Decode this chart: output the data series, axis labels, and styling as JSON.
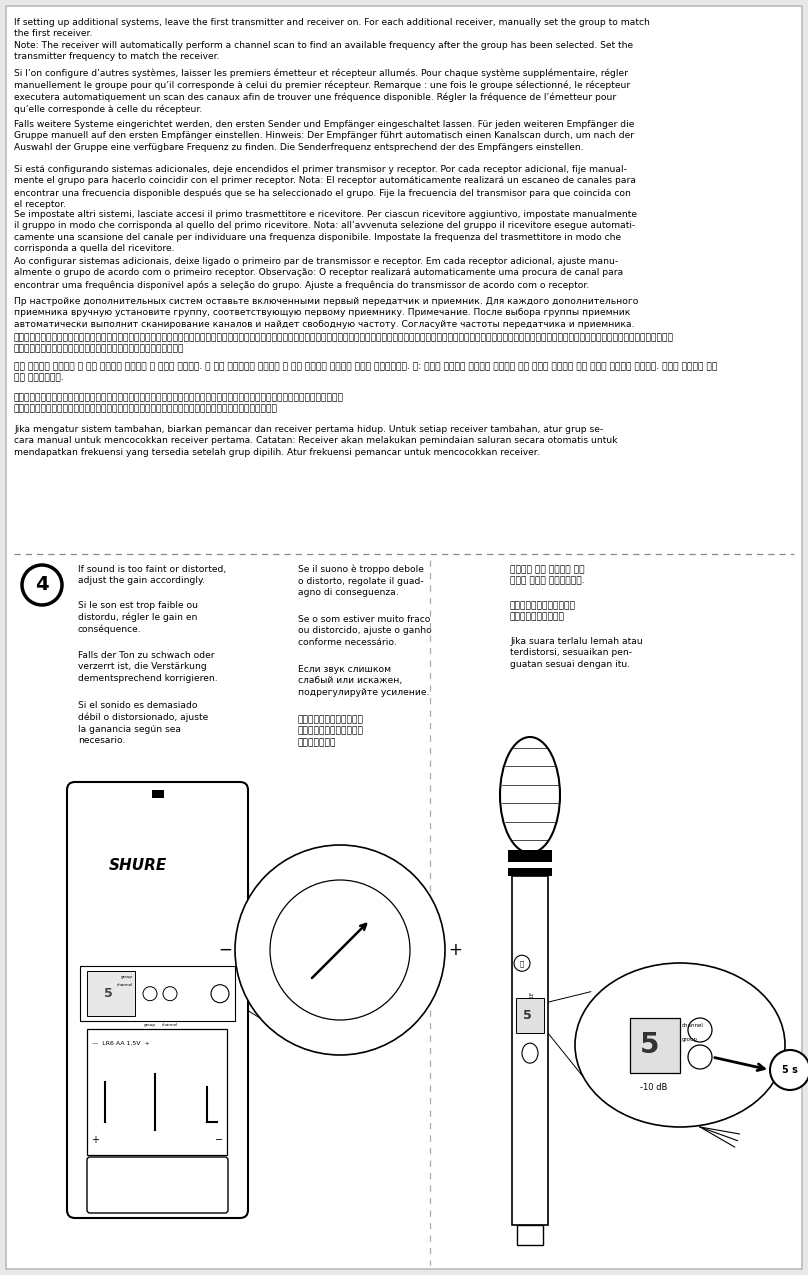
{
  "paragraphs": [
    "If setting up additional systems, leave the first transmitter and receiver on. For each additional receiver, manually set the group to match\nthe first receiver.\nNote: The receiver will automatically perform a channel scan to find an available frequency after the group has been selected. Set the\ntransmitter frequency to match the receiver.",
    "Si l’on configure d’autres systèmes, laisser les premiers émetteur et récepteur allumés. Pour chaque système supplémentaire, régler\nmanuellement le groupe pour qu’il corresponde à celui du premier récepteur. Remarque : une fois le groupe sélectionné, le récepteur\nexecutera automatiquement un scan des canaux afin de trouver une fréquence disponible. Régler la fréquence de l’émetteur pour\nqu’elle corresponde à celle du récepteur.",
    "Falls weitere Systeme eingerichtet werden, den ersten Sender und Empfänger eingeschaltet lassen. Für jeden weiteren Empfänger die\nGruppe manuell auf den ersten Empfänger einstellen. Hinweis: Der Empfänger führt automatisch einen Kanalscan durch, um nach der\nAuswahl der Gruppe eine verfügbare Frequenz zu finden. Die Senderfrequenz entsprechend der des Empfängers einstellen.",
    "Si está configurando sistemas adicionales, deje encendidos el primer transmisor y receptor. Por cada receptor adicional, fije manual-\nmente el grupo para hacerlo coincidir con el primer receptor. Nota: El receptor automáticamente realizará un escaneo de canales para\nencontrar una frecuencia disponible después que se ha seleccionado el grupo. Fije la frecuencia del transmisor para que coincida con\nel receptor.",
    "Se impostate altri sistemi, lasciate accesi il primo trasmettitore e ricevitore. Per ciascun ricevitore aggiuntivo, impostate manualmente\nil gruppo in modo che corrisponda al quello del primo ricevitore. Nota: all’avvenuta selezione del gruppo il ricevitore esegue automati-\ncamente una scansione del canale per individuare una frequenza disponibile. Impostate la frequenza del trasmettitore in modo che\ncorrisponda a quella del ricevitore.",
    "Ao configurar sistemas adicionais, deixe ligado o primeiro par de transmissor e receptor. Em cada receptor adicional, ajuste manu-\nalmente o grupo de acordo com o primeiro receptor. Observação: O receptor realizará automaticamente uma procura de canal para\nencontrar uma frequência disponivel após a seleção do grupo. Ajuste a frequência do transmissor de acordo com o receptor.",
    "Пр настройке дополнительных систем оставьте включенными первый передатчик и приемник. Для каждого дополнительного\nприемника вручную установите группу, соответствующую первому приемнику. Примечание. После выбора группы приемник\nавтоматически выполнит сканирование каналов и найдет свободную частоту. Согласуйте частоты передатчика и приемника.",
    "追加システムを設定する場合は、最初の送信機と受信機をオンにした状態にしてください。各追加受信機ごとに、グループを手動で設定して最初の受信機に合わせてください。注記：受信機は自動的にチャンネルスキャンを実行し、グループを選択したら利用可能な周\n波数を検出します。送信機周波数を設定して受信機に一致させます。",
    "추가 시스템을 설정하면 첫 번째 송신기와 수신기를 켤 상태로 두십시오. 각 추가 수신기마다 수동으로 첫 번째 송신기와 일치하는 그룹을 설정하십시오. 주: 그룹이 선택되면 수신기가 자동으로 채널 스캔을 수행하여 사용 가능한 주파수를 찾습니다. 송신기 주파수를 수신\n기에 일치시킵니다.",
    "如果要设置更多的系统，应让第一台发射机和接收机保持在打开状态。对于每个增加的接收机，因将组手动设置为与第一台接收机匹配。\n注意：接收机可自动纸筱厂频道扫描，在选取组之后找到可用的频率。将发射机的频率设置为与接收机匹配。",
    "Jika mengatur sistem tambahan, biarkan pemancar dan receiver pertama hidup. Untuk setiap receiver tambahan, atur grup se-\ncara manual untuk mencocokkan receiver pertama. Catatan: Receiver akan melakukan pemindaian saluran secara otomatis untuk\nmendapatkan frekuensi yang tersedia setelah grup dipilih. Atur frekuensi pemancar untuk mencocokkan receiver."
  ],
  "step4_col1": [
    "If sound is too faint or distorted,\nadjust the gain accordingly.",
    "Si le son est trop faible ou\ndistordu, régler le gain en\nconséquence.",
    "Falls der Ton zu schwach oder\nverzerrt ist, die Verstärkung\ndementsprechend korrigieren.",
    "Si el sonido es demasiado\ndébil o distorsionado, ajuste\nla ganancia según sea\nnecesario."
  ],
  "step4_col2": [
    "Se il suono è troppo debole\no distorto, regolate il guad-\nagno di conseguenza.",
    "Se o som estiver muito fraco\nou distorcido, ajuste o ganho\nconforme necessário.",
    "Если звук слишком\nслабый или искажен,\nподрегулируйте усиление.",
    "音が小さすぎる場合や歪む\n場合は、ゲインを適宜調整\nしてください。"
  ],
  "step4_col3": [
    "사운드가 너무 흐리거나 왔곳\n된다면 게인을 조절하십시오.",
    "如果声音太模糊或失真，应\n相应地调节增益设置。",
    "Jika suara terlalu lemah atau\nterdistorsi, sesuaikan pen-\nguatan sesuai dengan itu."
  ]
}
